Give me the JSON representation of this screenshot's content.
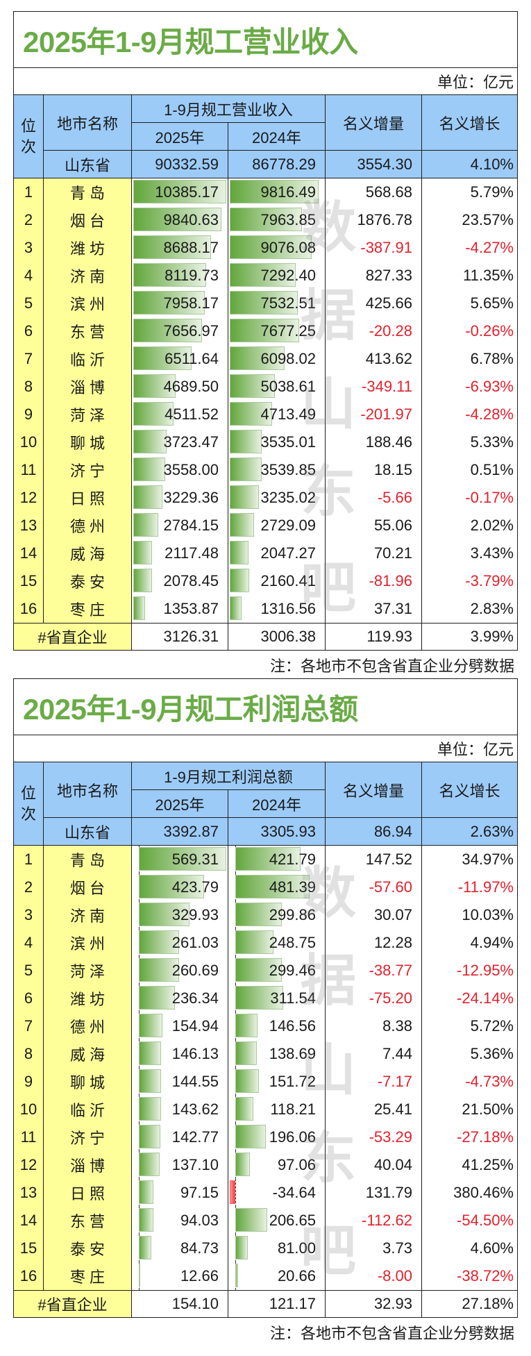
{
  "colors": {
    "title": "#6aab46",
    "header_bg": "#9ccbf8",
    "label_bg": "#ffff99",
    "negative_text": "#e3212d",
    "bar_positive": "#62a63c",
    "bar_negative": "#ff3a3a",
    "border": "#1e1e1e"
  },
  "watermark": {
    "chars": [
      "数",
      "据",
      "山",
      "东",
      "吧"
    ]
  },
  "chart_data": [
    {
      "type": "table",
      "title": "2025年1-9月规工营业收入",
      "unit": "单位：亿元",
      "header": {
        "rank": "位次",
        "city": "地市名称",
        "group": "1-9月规工营业收入",
        "y2025": "2025年",
        "y2024": "2024年",
        "increase": "名义增量",
        "growth": "名义增长"
      },
      "data_bar_columns": [
        "2025年",
        "2024年"
      ],
      "province": {
        "city": "山东省",
        "v2025": "90332.59",
        "v2024": "86778.29",
        "increase": "3554.30",
        "growth": "4.10%"
      },
      "rows": [
        {
          "rank": "1",
          "city": "青 岛",
          "v2025": "10385.17",
          "v2024": "9816.49",
          "increase": "568.68",
          "growth": "5.79%"
        },
        {
          "rank": "2",
          "city": "烟 台",
          "v2025": "9840.63",
          "v2024": "7963.85",
          "increase": "1876.78",
          "growth": "23.57%"
        },
        {
          "rank": "3",
          "city": "潍 坊",
          "v2025": "8688.17",
          "v2024": "9076.08",
          "increase": "-387.91",
          "growth": "-4.27%"
        },
        {
          "rank": "4",
          "city": "济 南",
          "v2025": "8119.73",
          "v2024": "7292.40",
          "increase": "827.33",
          "growth": "11.35%"
        },
        {
          "rank": "5",
          "city": "滨 州",
          "v2025": "7958.17",
          "v2024": "7532.51",
          "increase": "425.66",
          "growth": "5.65%"
        },
        {
          "rank": "6",
          "city": "东 营",
          "v2025": "7656.97",
          "v2024": "7677.25",
          "increase": "-20.28",
          "growth": "-0.26%"
        },
        {
          "rank": "7",
          "city": "临 沂",
          "v2025": "6511.64",
          "v2024": "6098.02",
          "increase": "413.62",
          "growth": "6.78%"
        },
        {
          "rank": "8",
          "city": "淄 博",
          "v2025": "4689.50",
          "v2024": "5038.61",
          "increase": "-349.11",
          "growth": "-6.93%"
        },
        {
          "rank": "9",
          "city": "菏 泽",
          "v2025": "4511.52",
          "v2024": "4713.49",
          "increase": "-201.97",
          "growth": "-4.28%"
        },
        {
          "rank": "10",
          "city": "聊 城",
          "v2025": "3723.47",
          "v2024": "3535.01",
          "increase": "188.46",
          "growth": "5.33%"
        },
        {
          "rank": "11",
          "city": "济 宁",
          "v2025": "3558.00",
          "v2024": "3539.85",
          "increase": "18.15",
          "growth": "0.51%"
        },
        {
          "rank": "12",
          "city": "日 照",
          "v2025": "3229.36",
          "v2024": "3235.02",
          "increase": "-5.66",
          "growth": "-0.17%"
        },
        {
          "rank": "13",
          "city": "德 州",
          "v2025": "2784.15",
          "v2024": "2729.09",
          "increase": "55.06",
          "growth": "2.02%"
        },
        {
          "rank": "14",
          "city": "威 海",
          "v2025": "2117.48",
          "v2024": "2047.27",
          "increase": "70.21",
          "growth": "3.43%"
        },
        {
          "rank": "15",
          "city": "泰 安",
          "v2025": "2078.45",
          "v2024": "2160.41",
          "increase": "-81.96",
          "growth": "-3.79%"
        },
        {
          "rank": "16",
          "city": "枣 庄",
          "v2025": "1353.87",
          "v2024": "1316.56",
          "increase": "37.31",
          "growth": "2.83%"
        }
      ],
      "direct": {
        "label": "#省直企业",
        "v2025": "3126.31",
        "v2024": "3006.38",
        "increase": "119.93",
        "growth": "3.99%"
      },
      "note": "注：各地市不包含省直企业分劈数据"
    },
    {
      "type": "table",
      "title": "2025年1-9月规工利润总额",
      "unit": "单位：亿元",
      "header": {
        "rank": "位次",
        "city": "地市名称",
        "group": "1-9月规工利润总额",
        "y2025": "2025年",
        "y2024": "2024年",
        "increase": "名义增量",
        "growth": "名义增长"
      },
      "data_bar_columns": [
        "2025年",
        "2024年"
      ],
      "province": {
        "city": "山东省",
        "v2025": "3392.87",
        "v2024": "3305.93",
        "increase": "86.94",
        "growth": "2.63%"
      },
      "rows": [
        {
          "rank": "1",
          "city": "青 岛",
          "v2025": "569.31",
          "v2024": "421.79",
          "increase": "147.52",
          "growth": "34.97%"
        },
        {
          "rank": "2",
          "city": "烟 台",
          "v2025": "423.79",
          "v2024": "481.39",
          "increase": "-57.60",
          "growth": "-11.97%"
        },
        {
          "rank": "3",
          "city": "济 南",
          "v2025": "329.93",
          "v2024": "299.86",
          "increase": "30.07",
          "growth": "10.03%"
        },
        {
          "rank": "4",
          "city": "滨 州",
          "v2025": "261.03",
          "v2024": "248.75",
          "increase": "12.28",
          "growth": "4.94%"
        },
        {
          "rank": "5",
          "city": "菏 泽",
          "v2025": "260.69",
          "v2024": "299.46",
          "increase": "-38.77",
          "growth": "-12.95%"
        },
        {
          "rank": "6",
          "city": "潍 坊",
          "v2025": "236.34",
          "v2024": "311.54",
          "increase": "-75.20",
          "growth": "-24.14%"
        },
        {
          "rank": "7",
          "city": "德 州",
          "v2025": "154.94",
          "v2024": "146.56",
          "increase": "8.38",
          "growth": "5.72%"
        },
        {
          "rank": "8",
          "city": "威 海",
          "v2025": "146.13",
          "v2024": "138.69",
          "increase": "7.44",
          "growth": "5.36%"
        },
        {
          "rank": "9",
          "city": "聊 城",
          "v2025": "144.55",
          "v2024": "151.72",
          "increase": "-7.17",
          "growth": "-4.73%"
        },
        {
          "rank": "10",
          "city": "临 沂",
          "v2025": "143.62",
          "v2024": "118.21",
          "increase": "25.41",
          "growth": "21.50%"
        },
        {
          "rank": "11",
          "city": "济 宁",
          "v2025": "142.77",
          "v2024": "196.06",
          "increase": "-53.29",
          "growth": "-27.18%"
        },
        {
          "rank": "12",
          "city": "淄 博",
          "v2025": "137.10",
          "v2024": "97.06",
          "increase": "40.04",
          "growth": "41.25%"
        },
        {
          "rank": "13",
          "city": "日 照",
          "v2025": "97.15",
          "v2024": "-34.64",
          "increase": "131.79",
          "growth": "380.46%"
        },
        {
          "rank": "14",
          "city": "东 营",
          "v2025": "94.03",
          "v2024": "206.65",
          "increase": "-112.62",
          "growth": "-54.50%"
        },
        {
          "rank": "15",
          "city": "泰 安",
          "v2025": "84.73",
          "v2024": "81.00",
          "increase": "3.73",
          "growth": "4.60%"
        },
        {
          "rank": "16",
          "city": "枣 庄",
          "v2025": "12.66",
          "v2024": "20.66",
          "increase": "-8.00",
          "growth": "-38.72%"
        }
      ],
      "direct": {
        "label": "#省直企业",
        "v2025": "154.10",
        "v2024": "121.17",
        "increase": "32.93",
        "growth": "27.18%"
      },
      "note": "注：各地市不包含省直企业分劈数据"
    }
  ]
}
